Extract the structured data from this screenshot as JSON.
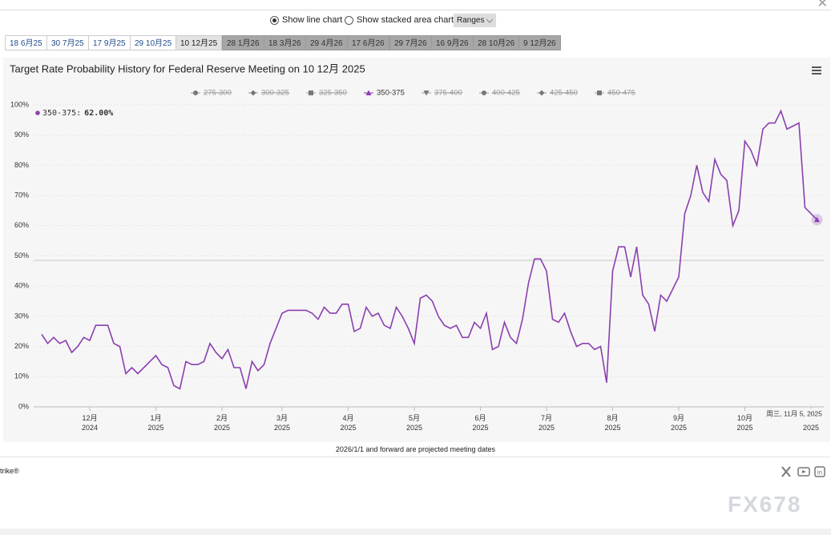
{
  "controls": {
    "line_chart": "Show line chart",
    "stacked_chart": "Show stacked area chart",
    "ranges": "Ranges"
  },
  "meeting_tabs": [
    {
      "label": "18 6月25",
      "projected": false
    },
    {
      "label": "30 7月25",
      "projected": false
    },
    {
      "label": "17 9月25",
      "projected": false
    },
    {
      "label": "29 10月25",
      "projected": false
    },
    {
      "label": "10 12月25",
      "projected": false,
      "selected": true
    },
    {
      "label": "28 1月26",
      "projected": true
    },
    {
      "label": "18 3月26",
      "projected": true
    },
    {
      "label": "29 4月26",
      "projected": true
    },
    {
      "label": "17 6月26",
      "projected": true
    },
    {
      "label": "29 7月26",
      "projected": true
    },
    {
      "label": "16 9月26",
      "projected": true
    },
    {
      "label": "28 10月26",
      "projected": true
    },
    {
      "label": "9 12月26",
      "projected": true
    }
  ],
  "chart_data": {
    "type": "line",
    "title": "Target Rate Probability History for Federal Reserve Meeting on 10 12月 2025",
    "categories": [
      null,
      null,
      null,
      null,
      null,
      null,
      null,
      null,
      "12月 2024",
      null,
      null,
      null,
      null,
      null,
      null,
      null,
      null,
      null,
      null,
      "1月 2025",
      null,
      null,
      null,
      null,
      null,
      null,
      null,
      null,
      null,
      null,
      "2月 2025",
      null,
      null,
      null,
      null,
      null,
      null,
      null,
      null,
      null,
      "3月 2025",
      null,
      null,
      null,
      null,
      null,
      null,
      null,
      null,
      null,
      null,
      "4月 2025",
      null,
      null,
      null,
      null,
      null,
      null,
      null,
      null,
      null,
      null,
      "5月 2025",
      null,
      null,
      null,
      null,
      null,
      null,
      null,
      null,
      null,
      null,
      "6月 2025",
      null,
      null,
      null,
      null,
      null,
      null,
      null,
      null,
      null,
      null,
      "7月 2025",
      null,
      null,
      null,
      null,
      null,
      null,
      null,
      null,
      null,
      null,
      "8月 2025",
      null,
      null,
      null,
      null,
      null,
      null,
      null,
      null,
      null,
      null,
      "9月 2025",
      null,
      null,
      null,
      null,
      null,
      null,
      null,
      null,
      null,
      null,
      "10月 2025",
      null,
      null,
      null,
      null,
      null,
      null,
      null,
      null,
      null,
      null,
      "2025",
      null
    ],
    "series": [
      {
        "name": "275-300",
        "marker": "circle",
        "visible": false
      },
      {
        "name": "300-325",
        "marker": "diamond",
        "visible": false
      },
      {
        "name": "325-350",
        "marker": "square",
        "visible": false
      },
      {
        "name": "350-375",
        "marker": "triangle",
        "visible": true,
        "color": "#8b3fb0",
        "values": [
          24,
          21,
          23,
          21,
          22,
          18,
          20,
          23,
          22,
          27,
          27,
          27,
          21,
          20,
          11,
          13,
          11,
          13,
          15,
          17,
          14,
          13,
          7,
          6,
          15,
          14,
          14,
          15,
          21,
          18,
          16,
          19,
          13,
          13,
          6,
          15,
          12,
          14,
          21,
          26,
          31,
          32,
          32,
          32,
          32,
          31,
          29,
          33,
          31,
          31,
          34,
          34,
          25,
          26,
          33,
          30,
          31,
          27,
          26,
          33,
          30,
          26,
          21,
          36,
          37,
          35,
          30,
          27,
          26,
          27,
          23,
          23,
          28,
          26,
          31,
          19,
          20,
          28,
          23,
          21,
          29,
          41,
          49,
          49,
          45,
          29,
          28,
          31,
          25,
          20,
          21,
          21,
          19,
          20,
          8,
          45,
          53,
          53,
          43,
          53,
          37,
          34,
          25,
          37,
          35,
          39,
          43,
          64,
          70,
          80,
          71,
          68,
          82,
          77,
          75,
          60,
          65,
          88,
          85,
          80,
          92,
          94,
          94,
          98,
          92,
          93,
          94,
          66,
          64,
          62
        ]
      },
      {
        "name": "375-400",
        "marker": "triangle-down",
        "visible": false
      },
      {
        "name": "400-425",
        "marker": "circle",
        "visible": false
      },
      {
        "name": "425-450",
        "marker": "diamond",
        "visible": false
      },
      {
        "name": "450-475",
        "marker": "square",
        "visible": false
      }
    ],
    "ylim": [
      0,
      100
    ],
    "yticks": [
      {
        "value": 0,
        "label": "0%"
      },
      {
        "value": 10,
        "label": "10%"
      },
      {
        "value": 20,
        "label": "20%"
      },
      {
        "value": 30,
        "label": "30%"
      },
      {
        "value": 40,
        "label": "40%"
      },
      {
        "value": 50,
        "label": "50%"
      },
      {
        "value": 60,
        "label": "60%"
      },
      {
        "value": 70,
        "label": "70%"
      },
      {
        "value": 80,
        "label": "80%"
      },
      {
        "value": 90,
        "label": "90%"
      },
      {
        "value": 100,
        "label": "100%"
      }
    ],
    "reference_line": 48.5,
    "grid": true,
    "tooltip": {
      "series": "350-375:",
      "value": 62,
      "label": "62.00%",
      "date": "周三, 11月 5, 2025"
    }
  },
  "footnote": "2026/1/1 and forward are projected meeting dates",
  "source_fragment": "trike®",
  "watermark": "FX678"
}
